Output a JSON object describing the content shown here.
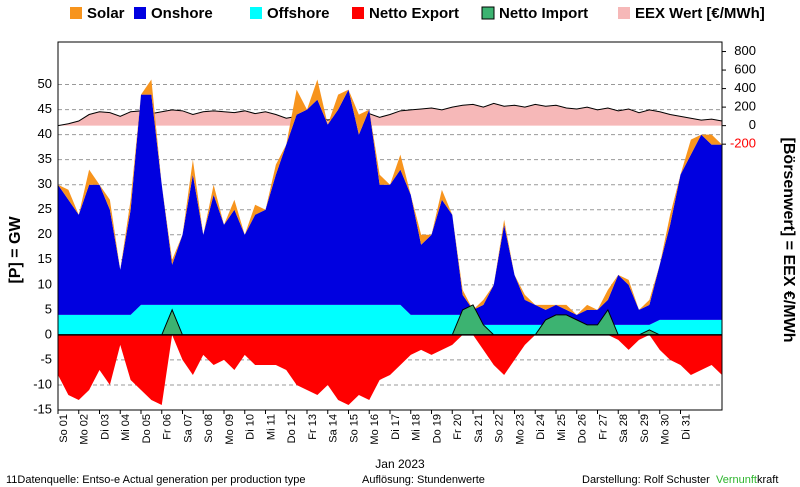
{
  "chart_data": {
    "type": "stacked-area",
    "xlabel": "Jan 2023",
    "ylabel": "[P] = GW",
    "y2label": "[Börsenwert] = EEX  €/MWh",
    "x": [
      0,
      0.5,
      1,
      1.5,
      2,
      2.5,
      3,
      3.5,
      4,
      4.5,
      5,
      5.5,
      6,
      6.5,
      7,
      7.5,
      8,
      8.5,
      9,
      9.5,
      10,
      10.5,
      11,
      11.5,
      12,
      12.5,
      13,
      13.5,
      14,
      14.5,
      15,
      15.5,
      16,
      16.5,
      17,
      17.5,
      18,
      18.5,
      19,
      19.5,
      20,
      20.5,
      21,
      21.5,
      22,
      22.5,
      23,
      23.5,
      24,
      24.5,
      25,
      25.5,
      26,
      26.5,
      27,
      27.5,
      28,
      28.5,
      29,
      29.5,
      30,
      30.5,
      31,
      31.5,
      32
    ],
    "xlim": [
      0,
      32
    ],
    "xticks": [
      {
        "value": 0,
        "label": "So 01"
      },
      {
        "value": 1,
        "label": "Mo 02"
      },
      {
        "value": 2,
        "label": "Di 03"
      },
      {
        "value": 3,
        "label": "Mi 04"
      },
      {
        "value": 4,
        "label": "Do 05"
      },
      {
        "value": 5,
        "label": "Fr 06"
      },
      {
        "value": 6,
        "label": "Sa 07"
      },
      {
        "value": 7,
        "label": "So 08"
      },
      {
        "value": 8,
        "label": "Mo 09"
      },
      {
        "value": 9,
        "label": "Di 10"
      },
      {
        "value": 10,
        "label": "Mi 11"
      },
      {
        "value": 11,
        "label": "Do 12"
      },
      {
        "value": 12,
        "label": "Fr 13"
      },
      {
        "value": 13,
        "label": "Sa 14"
      },
      {
        "value": 14,
        "label": "So 15"
      },
      {
        "value": 15,
        "label": "Mo 16"
      },
      {
        "value": 16,
        "label": "Di 17"
      },
      {
        "value": 17,
        "label": "Mi 18"
      },
      {
        "value": 18,
        "label": "Do 19"
      },
      {
        "value": 19,
        "label": "Fr 20"
      },
      {
        "value": 20,
        "label": "Sa 21"
      },
      {
        "value": 21,
        "label": "So 22"
      },
      {
        "value": 22,
        "label": "Mo 23"
      },
      {
        "value": 23,
        "label": "Di 24"
      },
      {
        "value": 24,
        "label": "Mi 25"
      },
      {
        "value": 25,
        "label": "Do 26"
      },
      {
        "value": 26,
        "label": "Fr 27"
      },
      {
        "value": 27,
        "label": "Sa 28"
      },
      {
        "value": 28,
        "label": "So 29"
      },
      {
        "value": 29,
        "label": "Mo 30"
      },
      {
        "value": 30,
        "label": "Di 31"
      }
    ],
    "ylim": [
      -15,
      58.5
    ],
    "yticks": [
      -15,
      -10,
      -5,
      0,
      5,
      10,
      15,
      20,
      25,
      30,
      35,
      40,
      45,
      50
    ],
    "y2lim": [
      -3070,
      903
    ],
    "y2ticks": [
      -200,
      0,
      200,
      400,
      600,
      800
    ],
    "grid": true,
    "series": [
      {
        "name": "Offshore",
        "color": "#00ffff",
        "stack": true,
        "values": [
          4,
          4,
          4,
          4,
          4,
          4,
          4,
          4,
          6,
          6,
          6,
          6,
          6,
          6,
          6,
          6,
          6,
          6,
          6,
          6,
          6,
          6,
          6,
          6,
          6,
          6,
          6,
          6,
          6,
          6,
          6,
          6,
          6,
          6,
          4,
          4,
          4,
          4,
          4,
          4,
          2,
          2,
          2,
          2,
          2,
          2,
          2,
          2,
          2,
          2,
          2,
          2,
          2,
          2,
          2,
          2,
          2,
          2,
          3,
          3,
          3,
          3,
          3,
          3,
          3
        ]
      },
      {
        "name": "Onshore",
        "color": "#0000e0",
        "stack": true,
        "values": [
          26,
          23,
          20,
          26,
          26,
          21,
          9,
          21,
          42,
          42,
          24,
          8,
          14,
          26,
          14,
          22,
          16,
          19,
          14,
          18,
          19,
          26,
          32,
          38,
          39,
          41,
          36,
          39,
          43,
          34,
          39,
          24,
          24,
          27,
          24,
          14,
          16,
          23,
          20,
          4,
          3,
          4,
          8,
          20,
          10,
          5,
          4,
          3,
          4,
          3,
          2,
          3,
          3,
          5,
          10,
          8,
          3,
          4,
          11,
          19,
          29,
          33,
          37,
          35,
          35
        ]
      },
      {
        "name": "Solar",
        "color": "#f7941d",
        "stack": true,
        "values": [
          0,
          2,
          0,
          3,
          0,
          2,
          0,
          2,
          0,
          3,
          0,
          1,
          0,
          3,
          0,
          2,
          0,
          2,
          0,
          2,
          0,
          2,
          0,
          5,
          0,
          4,
          0,
          3,
          0,
          4,
          0,
          2,
          0,
          3,
          0,
          2,
          0,
          2,
          0,
          1,
          0,
          1,
          0,
          1,
          0,
          1,
          0,
          1,
          0,
          1,
          0,
          1,
          0,
          2,
          0,
          1,
          0,
          1,
          0,
          2,
          0,
          3,
          0,
          2,
          0
        ]
      },
      {
        "name": "Netto Export",
        "color": "#ff0000",
        "values": [
          -8,
          -12,
          -13,
          -11,
          -7,
          -10,
          -2,
          -9,
          -11,
          -13,
          -14,
          0,
          -5,
          -8,
          -4,
          -6,
          -5,
          -7,
          -4,
          -6,
          -6,
          -6,
          -7,
          -10,
          -11,
          -12,
          -10,
          -13,
          -14,
          -12,
          -13,
          -9,
          -8,
          -6,
          -4,
          -3,
          -4,
          -3,
          -2,
          0,
          0,
          -3,
          -6,
          -8,
          -5,
          -2,
          0,
          0,
          0,
          0,
          0,
          0,
          0,
          0,
          -1,
          -3,
          -1,
          0,
          -3,
          -5,
          -6,
          -8,
          -7,
          -6,
          -8
        ]
      },
      {
        "name": "Netto Import",
        "color": "#3cb371",
        "values": [
          0,
          0,
          0,
          0,
          0,
          0,
          0,
          0,
          0,
          0,
          0,
          5,
          0,
          0,
          0,
          0,
          0,
          0,
          0,
          0,
          0,
          0,
          0,
          0,
          0,
          0,
          0,
          0,
          0,
          0,
          0,
          0,
          0,
          0,
          0,
          0,
          0,
          0,
          0,
          5,
          6,
          2,
          0,
          0,
          0,
          0,
          0,
          3,
          4,
          4,
          3,
          2,
          2,
          5,
          0,
          0,
          0,
          1,
          0,
          0,
          0,
          0,
          0,
          0,
          0
        ]
      },
      {
        "name": "EEX Wert [€/MWh]",
        "color": "#f6b8b8",
        "axis": "y2",
        "values": [
          0,
          20,
          50,
          120,
          150,
          140,
          100,
          150,
          160,
          130,
          150,
          170,
          160,
          120,
          150,
          160,
          150,
          140,
          160,
          130,
          150,
          120,
          80,
          100,
          140,
          110,
          60,
          90,
          40,
          100,
          130,
          90,
          120,
          160,
          170,
          180,
          190,
          170,
          200,
          220,
          230,
          200,
          240,
          210,
          220,
          200,
          230,
          210,
          220,
          190,
          180,
          200,
          170,
          190,
          160,
          180,
          140,
          170,
          150,
          120,
          100,
          80,
          60,
          70,
          50
        ]
      }
    ],
    "legend_order": [
      2,
      1,
      0,
      3,
      4,
      5
    ],
    "footer": {
      "source": "11Datenquelle: Entso-e  Actual generation per production type",
      "resolution": "Auflösung: Stundenwerte",
      "author": "Darstellung: Rolf Schuster",
      "brand_a": "Vernunft",
      "brand_b": "kraft"
    }
  }
}
